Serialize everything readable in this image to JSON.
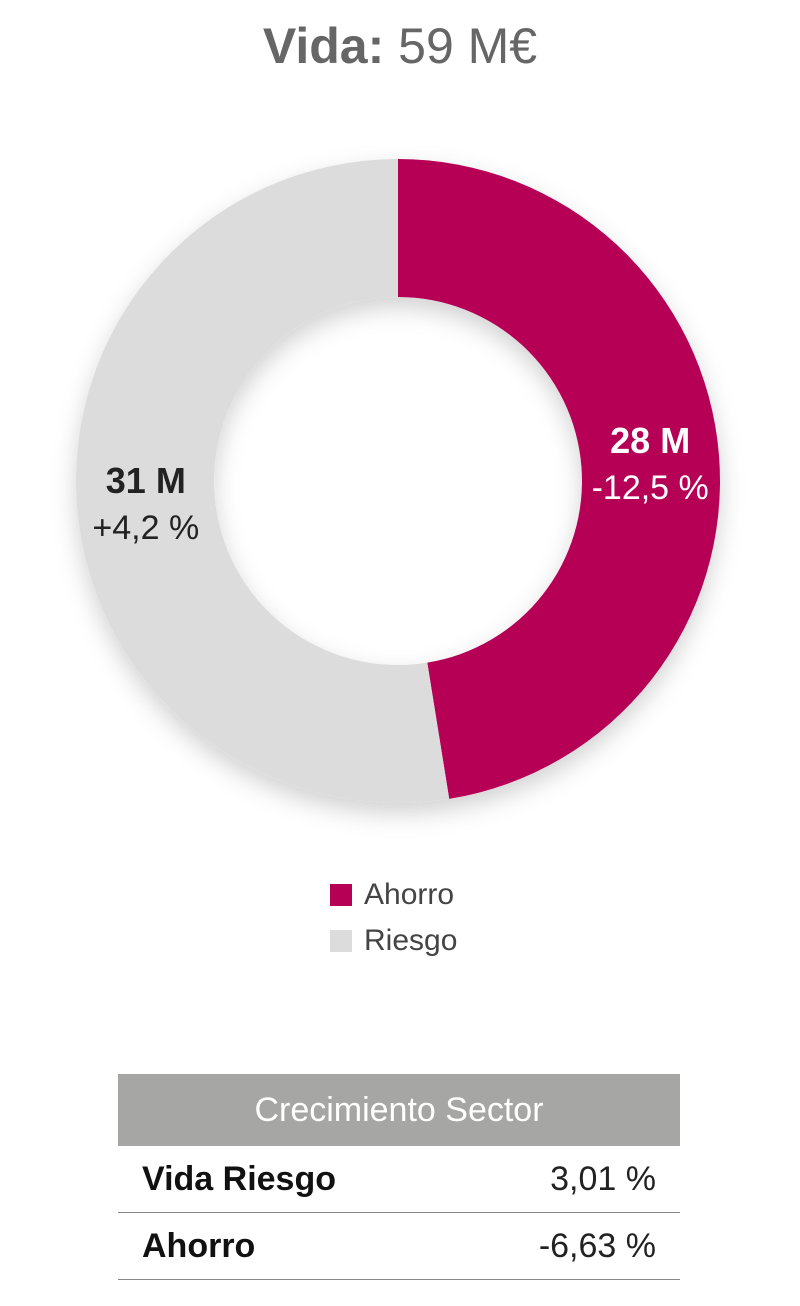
{
  "title": {
    "label": "Vida:",
    "value": "59 M€"
  },
  "chart_data": {
    "type": "pie",
    "donut": true,
    "slices": [
      {
        "name": "Ahorro",
        "value": 28,
        "value_label": "28 M",
        "change_label": "-12,5 %",
        "color": "#b50056",
        "label_color": "#ffffff"
      },
      {
        "name": "Riesgo",
        "value": 31,
        "value_label": "31 M",
        "change_label": "+4,2 %",
        "color": "#dcdcdc",
        "label_color": "#222222"
      }
    ],
    "legend": [
      "Ahorro",
      "Riesgo"
    ],
    "legend_placement": "bottom"
  },
  "table": {
    "header": "Crecimiento Sector",
    "rows": [
      {
        "label": "Vida Riesgo",
        "value": "3,01 %"
      },
      {
        "label": "Ahorro",
        "value": "-6,63 %"
      }
    ]
  }
}
